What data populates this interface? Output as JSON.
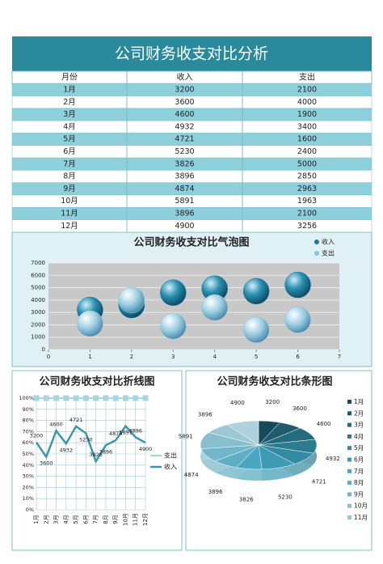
{
  "title": "公司财务收支对比分析",
  "table": {
    "columns": [
      "月份",
      "收入",
      "支出"
    ],
    "rows": [
      [
        "1月",
        3200,
        2100
      ],
      [
        "2月",
        3600,
        4000
      ],
      [
        "3月",
        4600,
        1900
      ],
      [
        "4月",
        4932,
        3400
      ],
      [
        "5月",
        4721,
        1600
      ],
      [
        "6月",
        5230,
        2400
      ],
      [
        "7月",
        3826,
        5000
      ],
      [
        "8月",
        3896,
        2850
      ],
      [
        "9月",
        4874,
        2963
      ],
      [
        "10月",
        5891,
        1963
      ],
      [
        "11月",
        3896,
        2100
      ],
      [
        "12月",
        4900,
        3256
      ]
    ]
  },
  "bubble_chart": {
    "type": "bubble",
    "title": "公司财务收支对比气泡图",
    "x": [
      1,
      2,
      3,
      4,
      5,
      6
    ],
    "xlim": [
      0,
      7
    ],
    "xticks": [
      0,
      1,
      2,
      3,
      4,
      5,
      6,
      7
    ],
    "ylim": [
      0,
      7000
    ],
    "yticks": [
      0,
      1000,
      2000,
      3000,
      4000,
      5000,
      6000,
      7000
    ],
    "grid": true,
    "series": [
      {
        "name": "收入",
        "color": "#1b7a9c"
      },
      {
        "name": "支出",
        "color": "#8cc3da"
      }
    ]
  },
  "line_chart": {
    "type": "line_percent_stacked",
    "title": "公司财务收支对比折线图",
    "ylim": [
      0,
      100
    ],
    "yticks": [
      {
        "value": 0,
        "label": "0%"
      },
      {
        "value": 10,
        "label": "10%"
      },
      {
        "value": 20,
        "label": "20%"
      },
      {
        "value": 30,
        "label": "30%"
      },
      {
        "value": 40,
        "label": "40%"
      },
      {
        "value": 50,
        "label": "50%"
      },
      {
        "value": 60,
        "label": "60%"
      },
      {
        "value": 70,
        "label": "70%"
      },
      {
        "value": 80,
        "label": "80%"
      },
      {
        "value": 90,
        "label": "90%"
      },
      {
        "value": 100,
        "label": "100%"
      }
    ],
    "series": [
      {
        "name": "支出",
        "color": "#a6d6df"
      },
      {
        "name": "收入",
        "color": "#3a96b0"
      }
    ]
  },
  "pie_chart": {
    "type": "pie",
    "title": "公司财务收支对比条形图"
  }
}
